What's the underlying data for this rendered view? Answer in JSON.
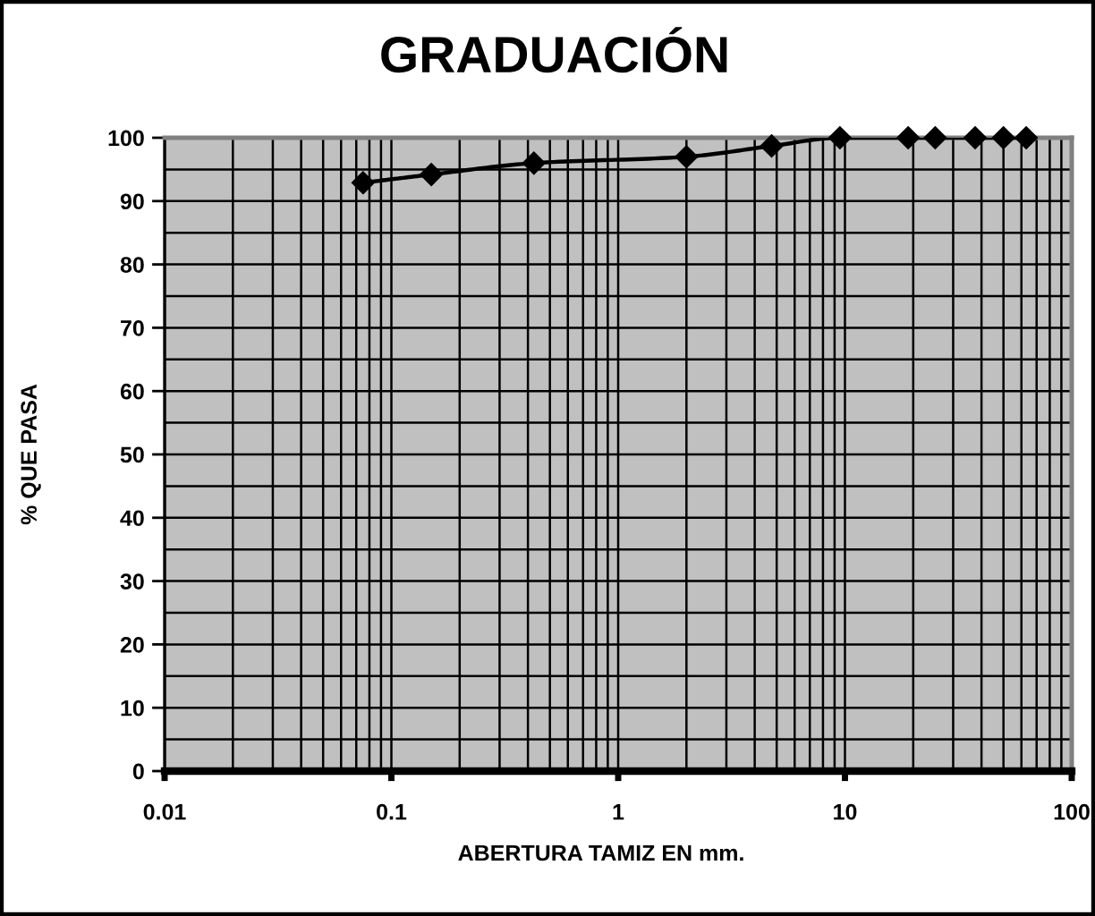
{
  "chart_data": {
    "type": "line",
    "title": "GRADUACIÓN",
    "xlabel": "ABERTURA TAMIZ EN mm.",
    "ylabel": "% QUE PASA",
    "x": [
      0.075,
      0.15,
      0.425,
      2,
      4.75,
      9.5,
      19,
      25,
      37.5,
      50,
      63
    ],
    "series": [
      {
        "color": "#000000",
        "values": [
          92.9,
          94.2,
          96,
          97,
          98.7,
          100,
          100,
          100,
          100,
          100,
          100
        ]
      }
    ],
    "log": "x",
    "xlim": [
      0.01,
      100
    ],
    "xticks": [
      0.01,
      0.1,
      1,
      10,
      100
    ],
    "ylim": [
      0,
      100
    ],
    "yticks": [
      0,
      10,
      20,
      30,
      40,
      50,
      60,
      70,
      80,
      90,
      100
    ],
    "grid": true,
    "marker": "diamond",
    "line_style": "solid"
  }
}
